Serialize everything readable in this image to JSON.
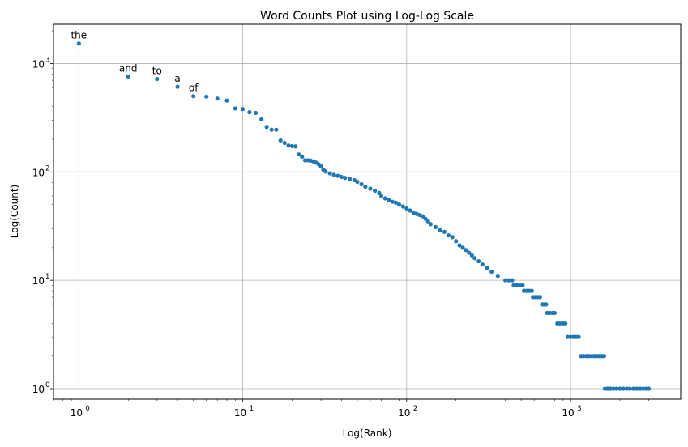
{
  "chart_data": {
    "type": "scatter",
    "title": "Word Counts Plot using Log-Log Scale",
    "xlabel": "Log(Rank)",
    "ylabel": "Log(Count)",
    "xscale": "log",
    "yscale": "log",
    "xlim": [
      0.7,
      4700
    ],
    "ylim": [
      0.8,
      2300
    ],
    "grid": true,
    "color": "#1f77b4",
    "x_ticks": [
      {
        "value": 1,
        "base": "10",
        "exp": "0"
      },
      {
        "value": 10,
        "base": "10",
        "exp": "1"
      },
      {
        "value": 100,
        "base": "10",
        "exp": "2"
      },
      {
        "value": 1000,
        "base": "10",
        "exp": "3"
      }
    ],
    "y_ticks": [
      {
        "value": 1,
        "base": "10",
        "exp": "0"
      },
      {
        "value": 10,
        "base": "10",
        "exp": "1"
      },
      {
        "value": 100,
        "base": "10",
        "exp": "2"
      },
      {
        "value": 1000,
        "base": "10",
        "exp": "3"
      }
    ],
    "annotations": [
      {
        "text": "the",
        "x": 1,
        "y": 1530
      },
      {
        "text": "and",
        "x": 2,
        "y": 760
      },
      {
        "text": "to",
        "x": 3,
        "y": 720
      },
      {
        "text": "a",
        "x": 4,
        "y": 610
      },
      {
        "text": "of",
        "x": 5,
        "y": 500
      }
    ],
    "points": [
      [
        1,
        1530
      ],
      [
        2,
        760
      ],
      [
        3,
        720
      ],
      [
        4,
        610
      ],
      [
        5,
        500
      ],
      [
        6,
        495
      ],
      [
        7,
        475
      ],
      [
        8,
        455
      ],
      [
        9,
        385
      ],
      [
        10,
        380
      ],
      [
        11,
        355
      ],
      [
        12,
        350
      ],
      [
        13,
        305
      ],
      [
        14,
        260
      ],
      [
        15,
        245
      ],
      [
        16,
        245
      ],
      [
        17,
        195
      ],
      [
        18,
        185
      ],
      [
        19,
        175
      ],
      [
        20,
        173
      ],
      [
        21,
        172
      ],
      [
        22,
        145
      ],
      [
        23,
        138
      ],
      [
        24,
        128
      ],
      [
        25,
        128
      ],
      [
        26,
        127
      ],
      [
        27,
        125
      ],
      [
        28,
        122
      ],
      [
        29,
        118
      ],
      [
        30,
        113
      ],
      [
        31,
        105
      ],
      [
        32,
        101
      ],
      [
        34,
        97
      ],
      [
        36,
        94
      ],
      [
        38,
        92
      ],
      [
        40,
        90
      ],
      [
        42,
        88
      ],
      [
        45,
        86
      ],
      [
        48,
        84
      ],
      [
        50,
        81
      ],
      [
        53,
        77
      ],
      [
        56,
        73
      ],
      [
        60,
        70
      ],
      [
        64,
        67
      ],
      [
        68,
        64
      ],
      [
        70,
        60
      ],
      [
        74,
        57
      ],
      [
        78,
        55
      ],
      [
        82,
        53
      ],
      [
        86,
        52
      ],
      [
        90,
        50
      ],
      [
        95,
        48
      ],
      [
        100,
        46
      ],
      [
        105,
        44
      ],
      [
        110,
        42
      ],
      [
        115,
        41
      ],
      [
        120,
        40
      ],
      [
        125,
        39
      ],
      [
        130,
        37
      ],
      [
        135,
        35
      ],
      [
        140,
        33
      ],
      [
        150,
        31
      ],
      [
        160,
        29
      ],
      [
        170,
        28
      ],
      [
        180,
        26
      ],
      [
        190,
        25
      ],
      [
        200,
        23
      ],
      [
        210,
        21
      ],
      [
        220,
        20
      ],
      [
        230,
        19
      ],
      [
        240,
        18
      ],
      [
        250,
        17
      ],
      [
        260,
        16
      ],
      [
        275,
        15
      ],
      [
        290,
        14
      ],
      [
        310,
        13
      ],
      [
        330,
        12
      ],
      [
        360,
        11
      ],
      [
        400,
        10
      ],
      [
        420,
        10
      ],
      [
        440,
        10
      ],
      [
        450,
        9
      ],
      [
        470,
        9
      ],
      [
        490,
        9
      ],
      [
        510,
        9
      ],
      [
        520,
        8
      ],
      [
        540,
        8
      ],
      [
        560,
        8
      ],
      [
        580,
        8
      ],
      [
        590,
        7
      ],
      [
        610,
        7
      ],
      [
        630,
        7
      ],
      [
        650,
        7
      ],
      [
        670,
        6
      ],
      [
        690,
        6
      ],
      [
        710,
        6
      ],
      [
        720,
        5
      ],
      [
        745,
        5
      ],
      [
        775,
        5
      ],
      [
        800,
        5
      ],
      [
        830,
        4
      ],
      [
        860,
        4
      ],
      [
        895,
        4
      ],
      [
        930,
        4
      ],
      [
        960,
        3
      ],
      [
        1000,
        3
      ],
      [
        1040,
        3
      ],
      [
        1080,
        3
      ],
      [
        1120,
        3
      ],
      [
        1160,
        2
      ],
      [
        1200,
        2
      ],
      [
        1250,
        2
      ],
      [
        1300,
        2
      ],
      [
        1350,
        2
      ],
      [
        1400,
        2
      ],
      [
        1450,
        2
      ],
      [
        1500,
        2
      ],
      [
        1550,
        2
      ],
      [
        1600,
        2
      ],
      [
        1620,
        1
      ],
      [
        1680,
        1
      ],
      [
        1750,
        1
      ],
      [
        1830,
        1
      ],
      [
        1910,
        1
      ],
      [
        2000,
        1
      ],
      [
        2100,
        1
      ],
      [
        2200,
        1
      ],
      [
        2300,
        1
      ],
      [
        2420,
        1
      ],
      [
        2540,
        1
      ],
      [
        2660,
        1
      ],
      [
        2780,
        1
      ],
      [
        2900,
        1
      ],
      [
        3000,
        1
      ]
    ]
  }
}
